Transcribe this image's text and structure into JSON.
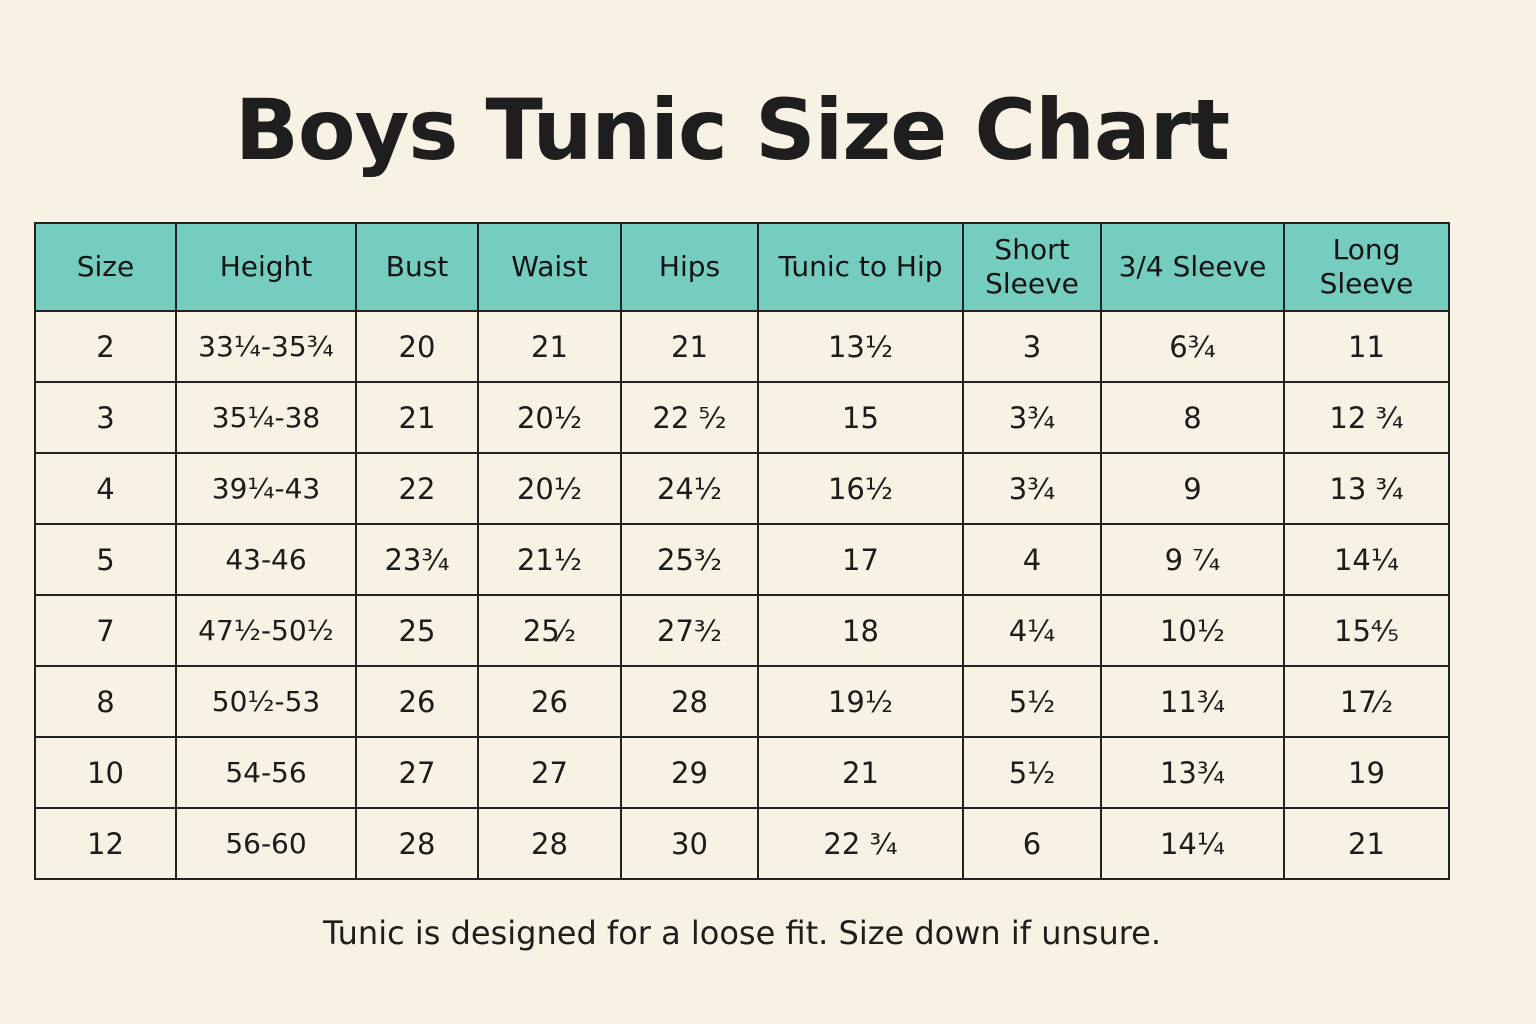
{
  "title": "Boys Tunic Size Chart",
  "table": {
    "headers": [
      "Size",
      "Height",
      "Bust",
      "Waist",
      "Hips",
      "Tunic to Hip",
      "Short Sleeve",
      "3/4 Sleeve",
      "Long Sleeve"
    ],
    "rows": [
      [
        "2",
        "33¼-35¾",
        "20",
        "21",
        "21",
        "13½",
        "3",
        "6¾",
        "11"
      ],
      [
        "3",
        "35¼-38",
        "21",
        "20½",
        "22 ⁵⁄₂",
        "15",
        "3¾",
        "8",
        "12 ³⁄₄"
      ],
      [
        "4",
        "39¼-43",
        "22",
        "20½",
        "24½",
        "16½",
        "3¾",
        "9",
        "13 ³⁄₄"
      ],
      [
        "5",
        "43-46",
        "23¾",
        "21½",
        "25³⁄₂",
        "17",
        "4",
        "9 ⁷⁄₄",
        "14¼"
      ],
      [
        "7",
        "47½-50½",
        "25",
        "25⁄₂",
        "27³⁄₂",
        "18",
        "4¼",
        "10½",
        "15⁴⁄₅"
      ],
      [
        "8",
        "50½-53",
        "26",
        "26",
        "28",
        "19½",
        "5½",
        "11¾",
        "17⁄₂"
      ],
      [
        "10",
        "54-56",
        "27",
        "27",
        "29",
        "21",
        "5½",
        "13¾",
        "19"
      ],
      [
        "12",
        "56-60",
        "28",
        "28",
        "30",
        "22 ³⁄₄",
        "6",
        "14¼",
        "21"
      ]
    ]
  },
  "footnote": "Tunic is designed for a loose fit. Size down if unsure.",
  "colors": {
    "background": "#f7f2e4",
    "header_fill": "#75cdbf",
    "border": "#222222",
    "text": "#1c1c1c"
  }
}
